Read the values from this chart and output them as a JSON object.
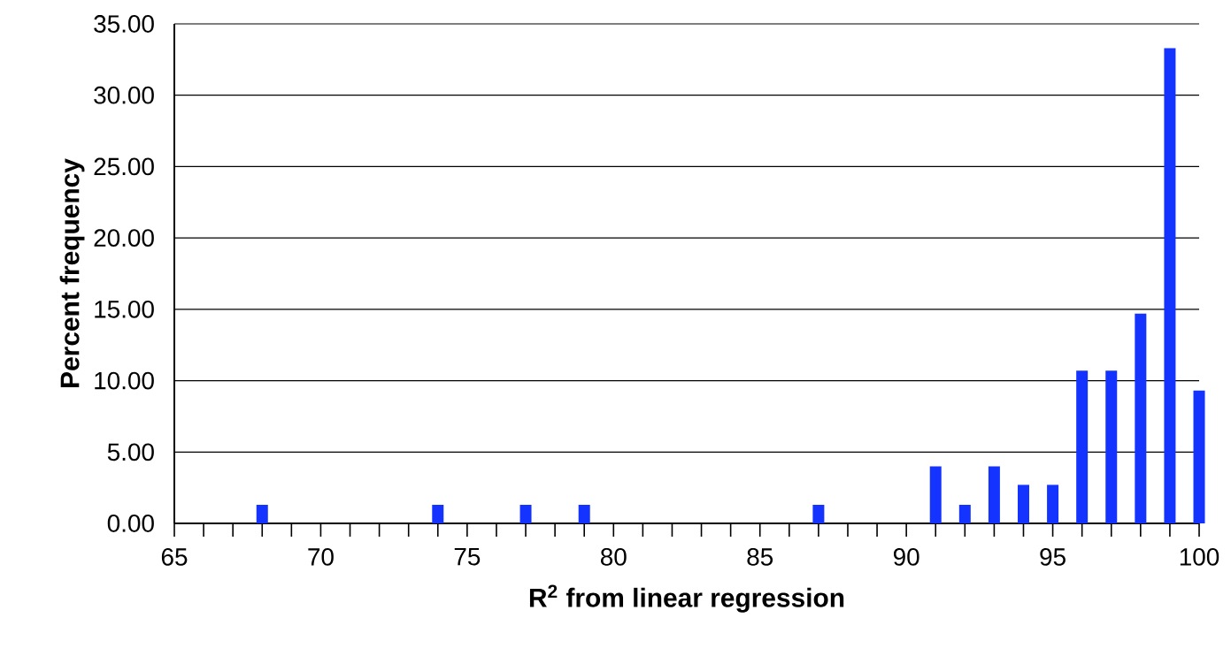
{
  "chart_data": {
    "type": "bar",
    "xlabel": "R$^{2}$ from linear regression",
    "ylabel": "Percent frequency",
    "x": [
      68,
      74,
      77,
      79,
      87,
      91,
      92,
      93,
      94,
      95,
      96,
      97,
      98,
      99,
      100
    ],
    "values": [
      1.3,
      1.3,
      1.3,
      1.3,
      1.3,
      4.0,
      1.3,
      4.0,
      2.7,
      2.7,
      10.7,
      10.7,
      14.7,
      33.3,
      9.3
    ],
    "color": "#1433ff",
    "xlim": [
      65,
      100
    ],
    "xticks": [
      65,
      {
        "value": 66,
        "label": null
      },
      {
        "value": 67,
        "label": null
      },
      {
        "value": 68,
        "label": null
      },
      {
        "value": 69,
        "label": null
      },
      70,
      {
        "value": 71,
        "label": null
      },
      {
        "value": 72,
        "label": null
      },
      {
        "value": 73,
        "label": null
      },
      {
        "value": 74,
        "label": null
      },
      75,
      {
        "value": 76,
        "label": null
      },
      {
        "value": 77,
        "label": null
      },
      {
        "value": 78,
        "label": null
      },
      {
        "value": 79,
        "label": null
      },
      80,
      {
        "value": 81,
        "label": null
      },
      {
        "value": 82,
        "label": null
      },
      {
        "value": 83,
        "label": null
      },
      {
        "value": 84,
        "label": null
      },
      85,
      {
        "value": 86,
        "label": null
      },
      {
        "value": 87,
        "label": null
      },
      {
        "value": 88,
        "label": null
      },
      {
        "value": 89,
        "label": null
      },
      90,
      {
        "value": 91,
        "label": null
      },
      {
        "value": 92,
        "label": null
      },
      {
        "value": 93,
        "label": null
      },
      {
        "value": 94,
        "label": null
      },
      95,
      {
        "value": 96,
        "label": null
      },
      {
        "value": 97,
        "label": null
      },
      {
        "value": 98,
        "label": null
      },
      {
        "value": 99,
        "label": null
      },
      100
    ],
    "ylim": [
      0,
      35
    ],
    "yticks": [
      {
        "value": 0,
        "label": "0.00"
      },
      {
        "value": 5,
        "label": "5.00"
      },
      {
        "value": 10,
        "label": "10.00"
      },
      {
        "value": 15,
        "label": "15.00"
      },
      {
        "value": 20,
        "label": "20.00"
      },
      {
        "value": 25,
        "label": "25.00"
      },
      {
        "value": 30,
        "label": "30.00"
      },
      {
        "value": 35,
        "label": "35.00"
      }
    ],
    "grid": "y"
  }
}
